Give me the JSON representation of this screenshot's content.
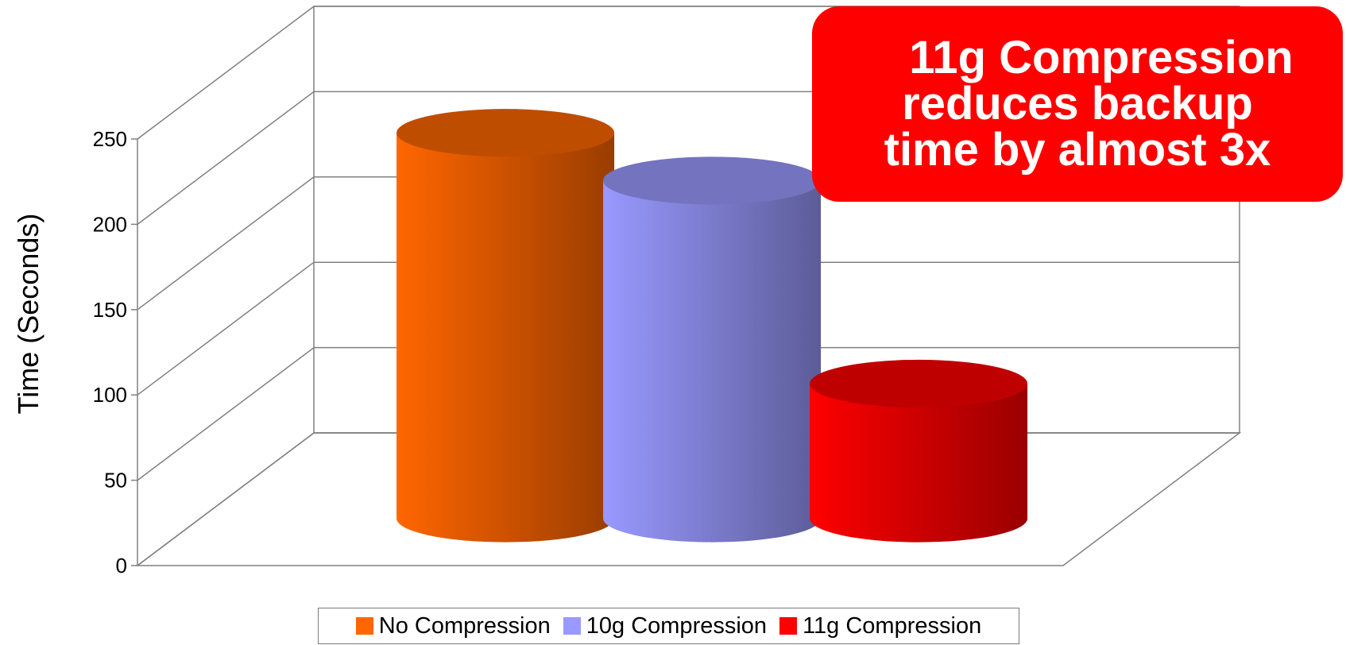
{
  "chart_data": {
    "type": "bar",
    "style": "3d-cylinder",
    "categories": [
      ""
    ],
    "series": [
      {
        "name": "No Compression",
        "values": [
          226
        ],
        "color": "#ff6600"
      },
      {
        "name": "10g Compression",
        "values": [
          198
        ],
        "color": "#9999ff"
      },
      {
        "name": "11g Compression",
        "values": [
          79
        ],
        "color": "#ff0000"
      }
    ],
    "ylabel": "Time (Seconds)",
    "xlabel": "",
    "ylim": [
      0,
      250
    ],
    "yticks": [
      "0",
      "50",
      "100",
      "150",
      "200",
      "250"
    ],
    "grid": true,
    "legend": "bottom",
    "annotation": {
      "lines": [
        "11g Compression",
        "reduces backup",
        "time by almost 3x"
      ],
      "color": "#ff0000"
    }
  }
}
